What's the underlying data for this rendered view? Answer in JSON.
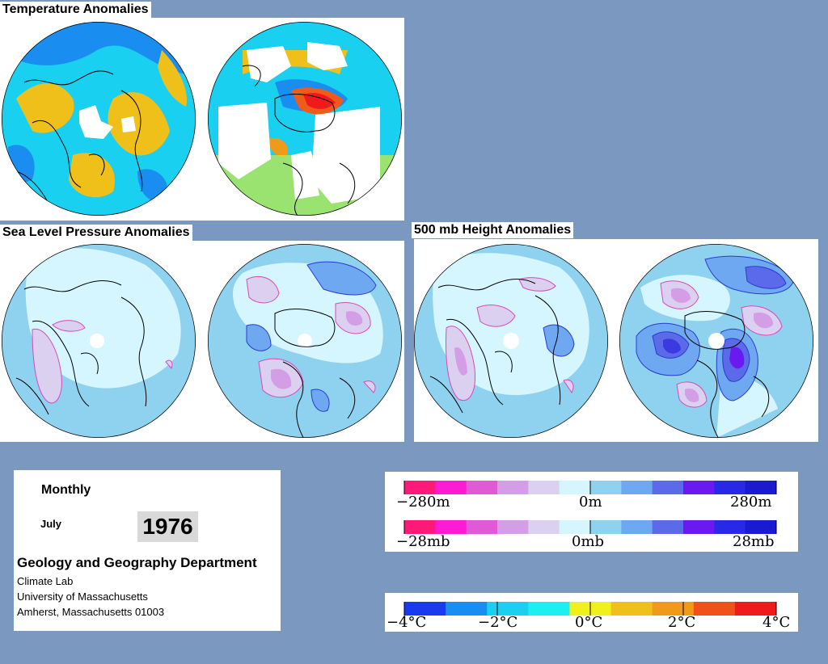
{
  "titles": {
    "temperature": "Temperature Anomalies",
    "slp": "Sea Level Pressure Anomalies",
    "height": "500 mb Height Anomalies"
  },
  "info": {
    "frequency": "Monthly",
    "month": "July",
    "year": "1976",
    "department": "Geology and Geography Department",
    "lab": "Climate Lab",
    "university": "University of Massachusetts",
    "address": "Amherst, Massachusetts 01003"
  },
  "legend_height": {
    "min": "−280m",
    "mid": "0m",
    "max": "280m"
  },
  "legend_pressure": {
    "min": "−28mb",
    "mid": "0mb",
    "max": "28mb"
  },
  "legend_temperature": {
    "labels": [
      "−4°C",
      "−2°C",
      "0°C",
      "2°C",
      "4°C"
    ]
  },
  "colors": {
    "background": "#7b98c0",
    "pink_scale": [
      "#ff1a7a",
      "#ff1ad4",
      "#e05ad6",
      "#d39ee6",
      "#dcd0f0",
      "#d6f6ff"
    ],
    "blue_scale": [
      "#d6f6ff",
      "#8ed2f0",
      "#6ea8f0",
      "#5b6ae8",
      "#6a1af0",
      "#2828e8",
      "#1a1ad0"
    ],
    "temp_scale": [
      "#1a3af0",
      "#1a8ef0",
      "#1ad0f0",
      "#1af0f0",
      "#f0f01a",
      "#f0c01a",
      "#f09a1a",
      "#f0501a",
      "#f01a1a"
    ],
    "land_outline": "#000000"
  }
}
